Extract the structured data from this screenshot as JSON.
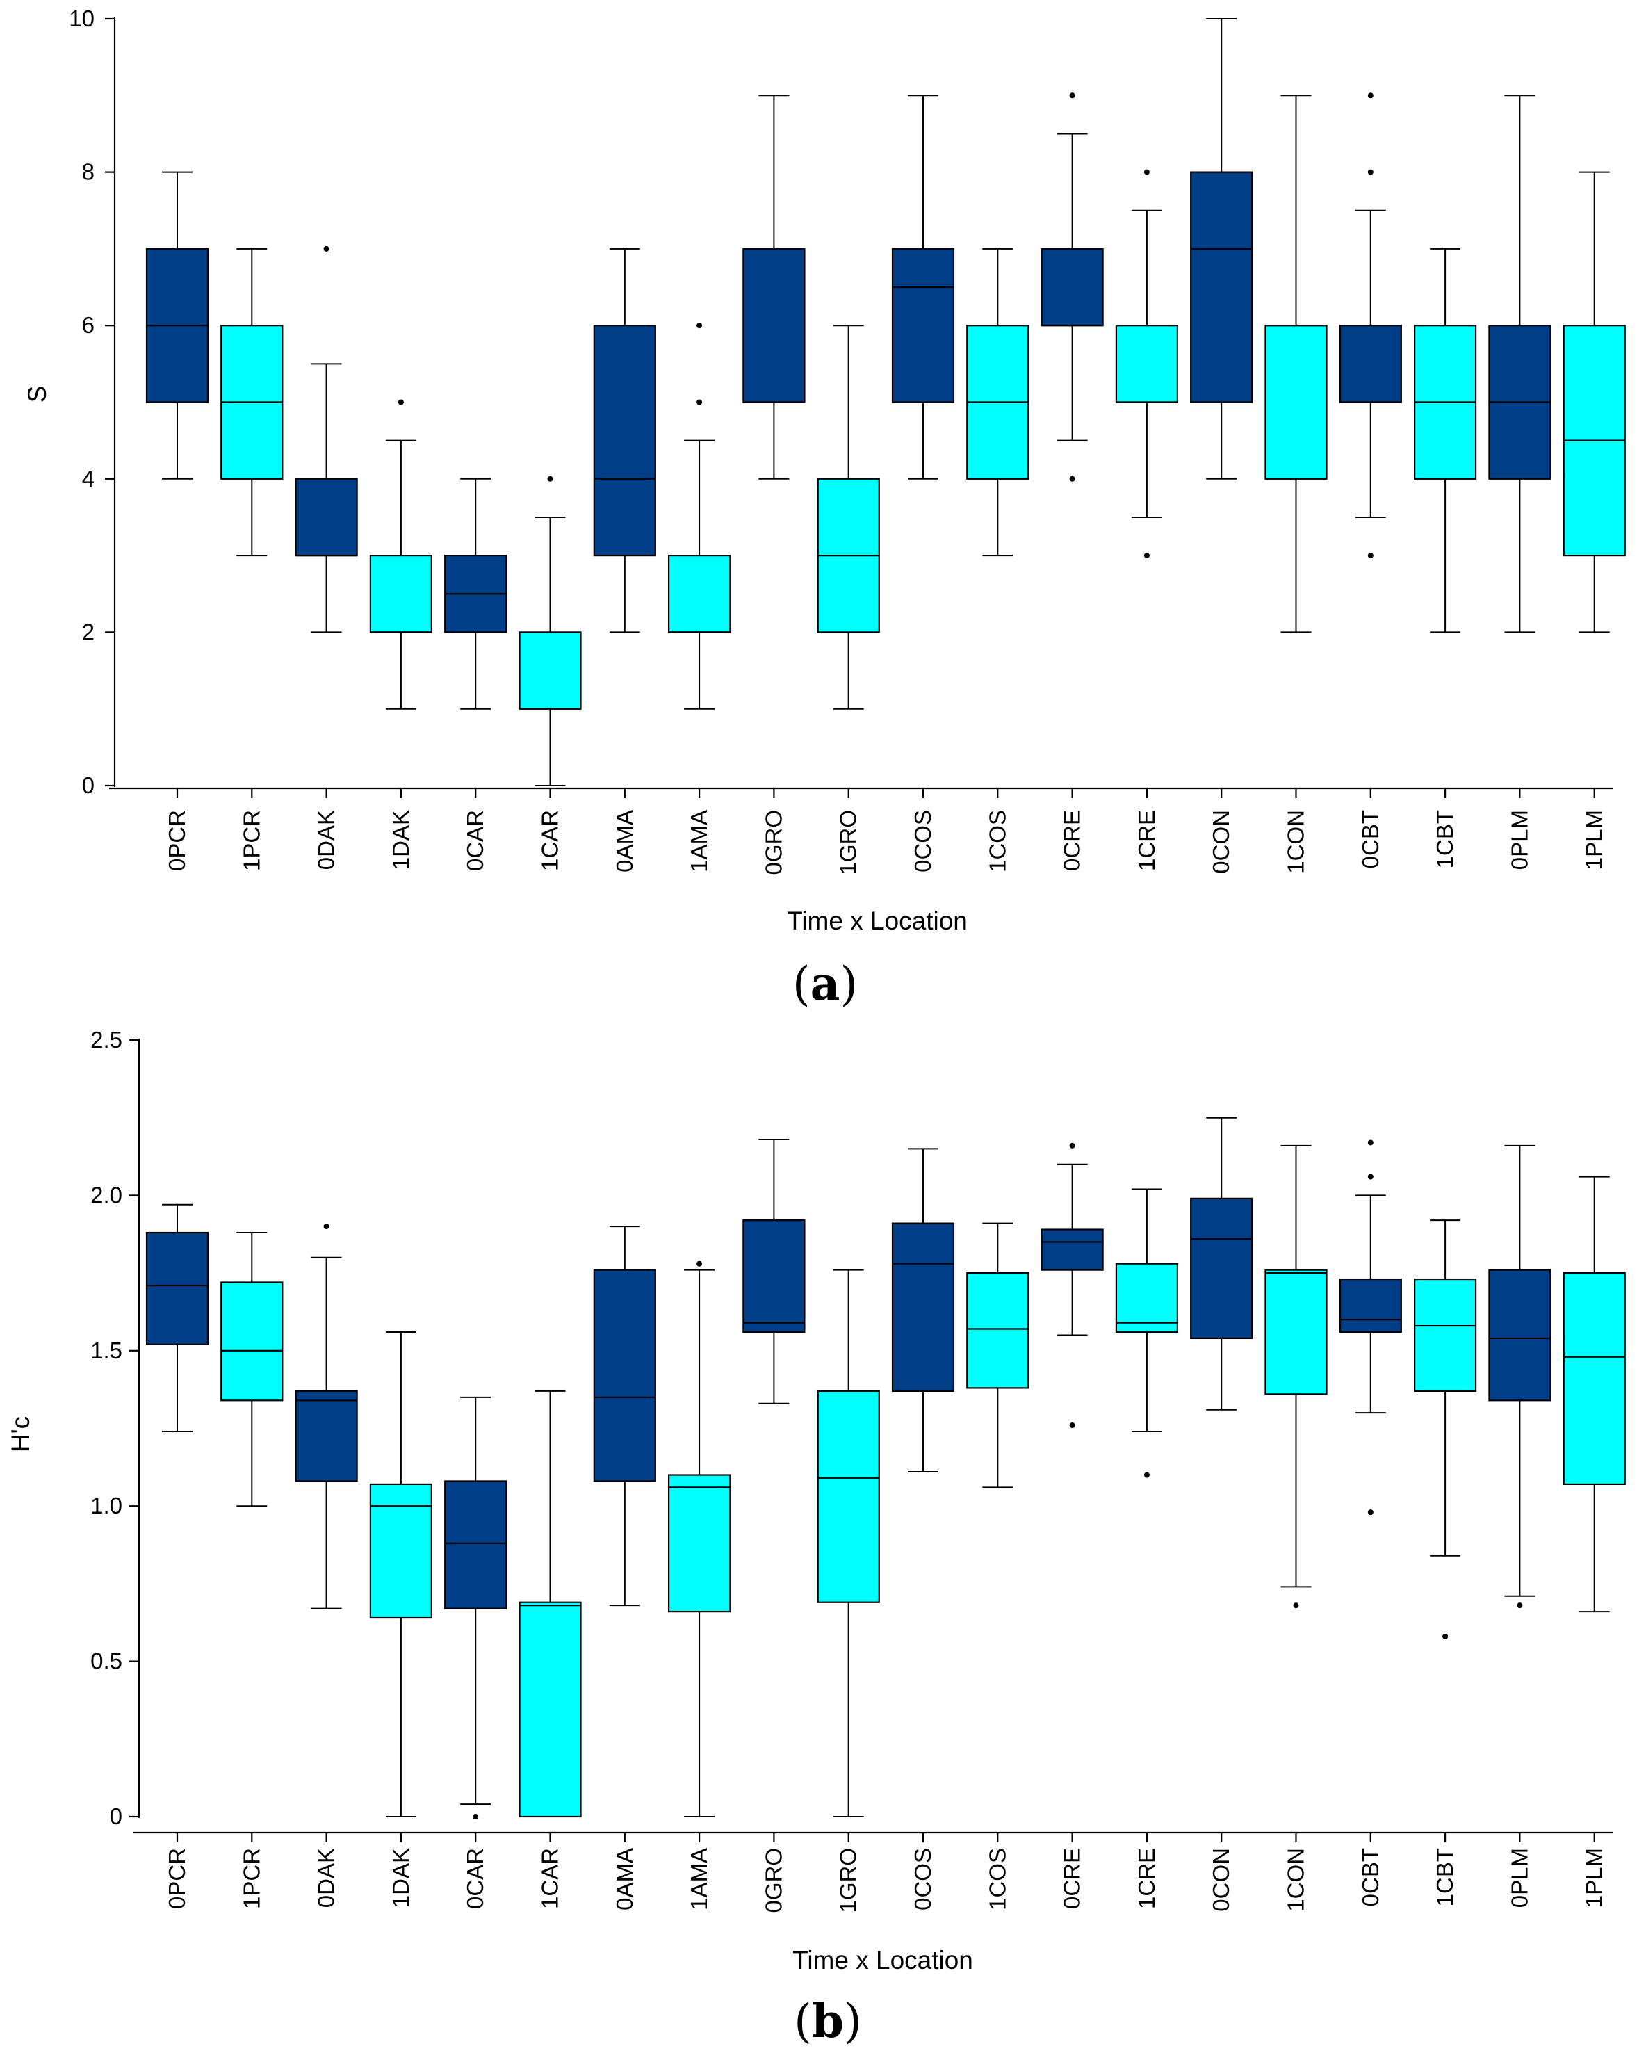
{
  "chart_data": [
    {
      "type": "boxplot",
      "panel_label": "a",
      "xlabel": "Time x Location",
      "ylabel": "S",
      "ylim": [
        0,
        10
      ],
      "yticks": [
        "0",
        "2",
        "4",
        "6",
        "8",
        "10"
      ],
      "ytick_values": [
        0,
        2,
        4,
        6,
        8,
        10
      ],
      "categories": [
        "0PCR",
        "1PCR",
        "0DAK",
        "1DAK",
        "0CAR",
        "1CAR",
        "0AMA",
        "1AMA",
        "0GRO",
        "1GRO",
        "0COS",
        "1COS",
        "0CRE",
        "1CRE",
        "0CON",
        "1CON",
        "0CBT",
        "1CBT",
        "0PLM",
        "1PLM"
      ],
      "colors": {
        "time0": "#003f87",
        "time1": "#00ffff",
        "line": "#000000"
      },
      "boxes": [
        {
          "min": 4,
          "q1": 5,
          "median": 6,
          "q3": 7,
          "max": 8,
          "outliers": []
        },
        {
          "min": 3,
          "q1": 4,
          "median": 5,
          "q3": 6,
          "max": 7,
          "outliers": []
        },
        {
          "min": 2,
          "q1": 3,
          "median": 3,
          "q3": 4,
          "max": 5.5,
          "outliers": [
            7
          ]
        },
        {
          "min": 1,
          "q1": 2,
          "median": 2,
          "q3": 3,
          "max": 4.5,
          "outliers": [
            5
          ]
        },
        {
          "min": 1,
          "q1": 2,
          "median": 2.5,
          "q3": 3,
          "max": 4,
          "outliers": []
        },
        {
          "min": 0,
          "q1": 1,
          "median": 1,
          "q3": 2,
          "max": 3.5,
          "outliers": [
            4
          ]
        },
        {
          "min": 2,
          "q1": 3,
          "median": 4,
          "q3": 6,
          "max": 7,
          "outliers": []
        },
        {
          "min": 1,
          "q1": 2,
          "median": 2,
          "q3": 3,
          "max": 4.5,
          "outliers": [
            5,
            6
          ]
        },
        {
          "min": 4,
          "q1": 5,
          "median": 5,
          "q3": 7,
          "max": 9,
          "outliers": []
        },
        {
          "min": 1,
          "q1": 2,
          "median": 3,
          "q3": 4,
          "max": 6,
          "outliers": []
        },
        {
          "min": 4,
          "q1": 5,
          "median": 6.5,
          "q3": 7,
          "max": 9,
          "outliers": []
        },
        {
          "min": 3,
          "q1": 4,
          "median": 5,
          "q3": 6,
          "max": 7,
          "outliers": []
        },
        {
          "min": 4.5,
          "q1": 6,
          "median": 6,
          "q3": 7,
          "max": 8.5,
          "outliers": [
            9,
            4
          ]
        },
        {
          "min": 3.5,
          "q1": 5,
          "median": 5,
          "q3": 6,
          "max": 7.5,
          "outliers": [
            8,
            3
          ]
        },
        {
          "min": 4,
          "q1": 5,
          "median": 7,
          "q3": 8,
          "max": 10,
          "outliers": []
        },
        {
          "min": 2,
          "q1": 4,
          "median": 6,
          "q3": 6,
          "max": 9,
          "outliers": []
        },
        {
          "min": 3.5,
          "q1": 5,
          "median": 5,
          "q3": 6,
          "max": 7.5,
          "outliers": [
            9,
            8,
            3
          ]
        },
        {
          "min": 2,
          "q1": 4,
          "median": 5,
          "q3": 6,
          "max": 7,
          "outliers": []
        },
        {
          "min": 2,
          "q1": 4,
          "median": 5,
          "q3": 6,
          "max": 9,
          "outliers": []
        },
        {
          "min": 2,
          "q1": 3,
          "median": 4.5,
          "q3": 6,
          "max": 8,
          "outliers": []
        }
      ]
    },
    {
      "type": "boxplot",
      "panel_label": "b",
      "xlabel": "Time x Location",
      "ylabel": "H'c",
      "ylim": [
        0,
        2.5
      ],
      "yticks": [
        "0",
        "0.5",
        "1.0",
        "1.5",
        "2.0",
        "2.5"
      ],
      "ytick_values": [
        0,
        0.5,
        1.0,
        1.5,
        2.0,
        2.5
      ],
      "categories": [
        "0PCR",
        "1PCR",
        "0DAK",
        "1DAK",
        "0CAR",
        "1CAR",
        "0AMA",
        "1AMA",
        "0GRO",
        "1GRO",
        "0COS",
        "1COS",
        "0CRE",
        "1CRE",
        "0CON",
        "1CON",
        "0CBT",
        "1CBT",
        "0PLM",
        "1PLM"
      ],
      "colors": {
        "time0": "#003f87",
        "time1": "#00ffff",
        "line": "#000000"
      },
      "boxes": [
        {
          "min": 1.24,
          "q1": 1.52,
          "median": 1.71,
          "q3": 1.88,
          "max": 1.97,
          "outliers": []
        },
        {
          "min": 1.0,
          "q1": 1.34,
          "median": 1.5,
          "q3": 1.72,
          "max": 1.88,
          "outliers": []
        },
        {
          "min": 0.67,
          "q1": 1.08,
          "median": 1.34,
          "q3": 1.37,
          "max": 1.8,
          "outliers": [
            1.9
          ]
        },
        {
          "min": 0,
          "q1": 0.64,
          "median": 1.0,
          "q3": 1.07,
          "max": 1.56,
          "outliers": []
        },
        {
          "min": 0.04,
          "q1": 0.67,
          "median": 0.88,
          "q3": 1.08,
          "max": 1.35,
          "outliers": [
            0
          ]
        },
        {
          "min": 0,
          "q1": 0,
          "median": 0.68,
          "q3": 0.69,
          "max": 1.37,
          "outliers": []
        },
        {
          "min": 0.68,
          "q1": 1.08,
          "median": 1.35,
          "q3": 1.76,
          "max": 1.9,
          "outliers": []
        },
        {
          "min": 0,
          "q1": 0.66,
          "median": 1.06,
          "q3": 1.1,
          "max": 1.76,
          "outliers": [
            1.78
          ]
        },
        {
          "min": 1.33,
          "q1": 1.56,
          "median": 1.59,
          "q3": 1.92,
          "max": 2.18,
          "outliers": []
        },
        {
          "min": 0,
          "q1": 0.69,
          "median": 1.09,
          "q3": 1.37,
          "max": 1.76,
          "outliers": []
        },
        {
          "min": 1.11,
          "q1": 1.37,
          "median": 1.78,
          "q3": 1.91,
          "max": 2.15,
          "outliers": []
        },
        {
          "min": 1.06,
          "q1": 1.38,
          "median": 1.57,
          "q3": 1.75,
          "max": 1.91,
          "outliers": []
        },
        {
          "min": 1.55,
          "q1": 1.76,
          "median": 1.85,
          "q3": 1.89,
          "max": 2.1,
          "outliers": [
            2.16,
            1.26
          ]
        },
        {
          "min": 1.24,
          "q1": 1.56,
          "median": 1.59,
          "q3": 1.78,
          "max": 2.02,
          "outliers": [
            1.1
          ]
        },
        {
          "min": 1.31,
          "q1": 1.54,
          "median": 1.86,
          "q3": 1.99,
          "max": 2.25,
          "outliers": []
        },
        {
          "min": 0.74,
          "q1": 1.36,
          "median": 1.75,
          "q3": 1.76,
          "max": 2.16,
          "outliers": [
            0.68
          ]
        },
        {
          "min": 1.3,
          "q1": 1.56,
          "median": 1.6,
          "q3": 1.73,
          "max": 2.0,
          "outliers": [
            2.17,
            2.06,
            0.98
          ]
        },
        {
          "min": 0.84,
          "q1": 1.37,
          "median": 1.58,
          "q3": 1.73,
          "max": 1.92,
          "outliers": [
            0.58
          ]
        },
        {
          "min": 0.71,
          "q1": 1.34,
          "median": 1.54,
          "q3": 1.76,
          "max": 2.16,
          "outliers": [
            0.68
          ]
        },
        {
          "min": 0.66,
          "q1": 1.07,
          "median": 1.48,
          "q3": 1.75,
          "max": 2.06,
          "outliers": []
        }
      ]
    }
  ]
}
